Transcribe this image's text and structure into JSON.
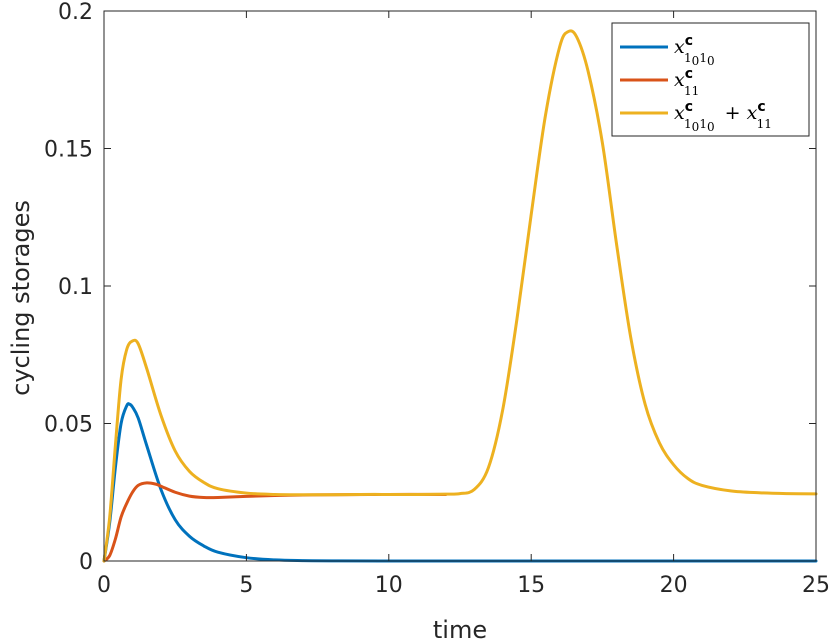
{
  "chart_data": {
    "type": "line",
    "title": "",
    "xlabel": "time",
    "ylabel": "cycling  storages",
    "xlim": [
      0,
      25
    ],
    "ylim": [
      0,
      0.2
    ],
    "xticks": [
      0,
      5,
      10,
      15,
      20,
      25
    ],
    "xtick_labels": [
      "0",
      "5",
      "10",
      "15",
      "20",
      "25"
    ],
    "yticks": [
      0,
      0.05,
      0.1,
      0.15,
      0.2
    ],
    "ytick_labels": [
      "0",
      "0.05",
      "0.1",
      "0.15",
      "0.2"
    ],
    "grid": false,
    "legend_position": "top-right",
    "series": [
      {
        "name": "x_{1_0 1_0}^c",
        "legend": {
          "base": "x",
          "sup": "c",
          "sub": "1",
          "sub2": "0",
          "sub3": "1",
          "sub4": "0"
        },
        "color": "#0072BD",
        "x": [
          0,
          0.2,
          0.4,
          0.6,
          0.8,
          0.9,
          1.0,
          1.2,
          1.5,
          2.0,
          2.5,
          3.0,
          3.5,
          4.0,
          5.0,
          6.0,
          7.0,
          8.0,
          10.0,
          15.0,
          20.0,
          25.0
        ],
        "y": [
          0,
          0.014,
          0.034,
          0.05,
          0.0565,
          0.057,
          0.056,
          0.052,
          0.042,
          0.026,
          0.015,
          0.009,
          0.0055,
          0.0032,
          0.0012,
          0.0004,
          0.00015,
          5e-05,
          0,
          0,
          0,
          0
        ]
      },
      {
        "name": "x_{11}^c",
        "legend": {
          "base": "x",
          "sup": "c",
          "sub": "11"
        },
        "color": "#D95319",
        "x": [
          0,
          0.2,
          0.4,
          0.6,
          0.8,
          1.0,
          1.2,
          1.5,
          1.8,
          2.0,
          2.5,
          3.0,
          3.5,
          4.0,
          5.0,
          6.0,
          7.0,
          8.0,
          10.0,
          12.0
        ],
        "y": [
          0,
          0.002,
          0.008,
          0.016,
          0.021,
          0.025,
          0.0275,
          0.0284,
          0.028,
          0.0272,
          0.025,
          0.0236,
          0.0231,
          0.0231,
          0.0235,
          0.0238,
          0.024,
          0.0241,
          0.0242,
          0.0242
        ]
      },
      {
        "name": "x_{1_0 1_0}^c + x_{11}^c",
        "legend": {
          "base": "x",
          "sup": "c",
          "sub": "1",
          "sub2": "0",
          "sub3": "1",
          "sub4": "0",
          "plus_base": "x",
          "plus_sup": "c",
          "plus_sub": "11"
        },
        "color": "#EDB120",
        "x": [
          0,
          0.2,
          0.4,
          0.6,
          0.8,
          1.0,
          1.2,
          1.5,
          2.0,
          2.5,
          3.0,
          3.5,
          4.0,
          5.0,
          6.0,
          7.0,
          8.0,
          9.0,
          10.0,
          11.0,
          12.0,
          12.5,
          13.0,
          13.5,
          14.0,
          14.5,
          15.0,
          15.5,
          16.0,
          16.3,
          16.6,
          17.0,
          17.5,
          18.0,
          18.5,
          19.0,
          19.5,
          20.0,
          20.5,
          21.0,
          22.0,
          23.0,
          24.0,
          25.0
        ],
        "y": [
          0,
          0.016,
          0.042,
          0.066,
          0.077,
          0.08,
          0.079,
          0.07,
          0.053,
          0.04,
          0.0326,
          0.0286,
          0.0263,
          0.0247,
          0.0242,
          0.0241,
          0.0241,
          0.0242,
          0.0242,
          0.0242,
          0.0243,
          0.0245,
          0.026,
          0.034,
          0.055,
          0.088,
          0.126,
          0.162,
          0.187,
          0.1925,
          0.1905,
          0.178,
          0.152,
          0.115,
          0.081,
          0.057,
          0.043,
          0.035,
          0.03,
          0.0275,
          0.0255,
          0.0248,
          0.0245,
          0.0244
        ]
      }
    ]
  }
}
